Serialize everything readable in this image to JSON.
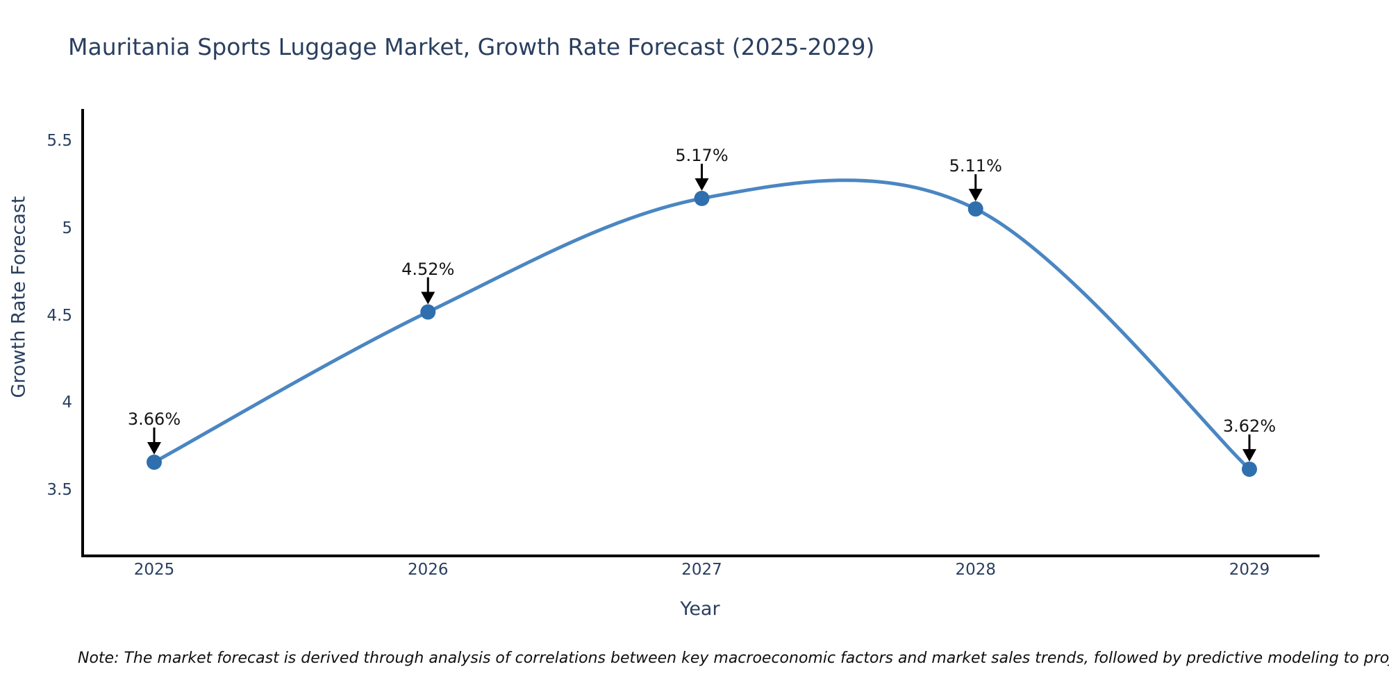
{
  "title": "Mauritania Sports Luggage Market, Growth Rate Forecast (2025-2029)",
  "note": "Note: The market forecast is derived through analysis of correlations between key macroeconomic factors and market sales trends, followed by predictive modeling to project future sales",
  "colors": {
    "title_text": "#2a3f5f",
    "axis_text": "#2a3f5f",
    "line": "#4a86c2",
    "marker": "#2f6fae",
    "annotation": "#151515",
    "arrow": "#000000",
    "spine": "#000000",
    "background": "#ffffff"
  },
  "chart_data": {
    "type": "line",
    "line_shape": "spline",
    "markers": true,
    "title": "Mauritania Sports Luggage Market, Growth Rate Forecast (2025-2029)",
    "xlabel": "Year",
    "ylabel": "Growth Rate Forecast",
    "x": [
      2025,
      2026,
      2027,
      2028,
      2029
    ],
    "series": [
      {
        "name": "Growth Rate Forecast",
        "values": [
          3.66,
          4.52,
          5.17,
          5.11,
          3.62
        ],
        "point_labels": [
          "3.66%",
          "4.52%",
          "5.17%",
          "5.11%",
          "3.62%"
        ]
      }
    ],
    "xticks": [
      "2025",
      "2026",
      "2027",
      "2028",
      "2029"
    ],
    "yticks": [
      3.5,
      4,
      4.5,
      5,
      5.5
    ],
    "ytick_labels": [
      "3.5",
      "4",
      "4.5",
      "5",
      "5.5"
    ],
    "xlim": [
      2024.74,
      2029.26
    ],
    "ylim": [
      3.12,
      5.68
    ],
    "grid": false,
    "legend": "none",
    "annotations_have_arrows": true
  }
}
